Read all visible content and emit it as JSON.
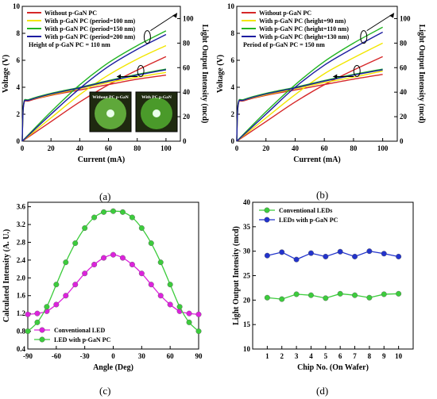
{
  "panels": [
    {
      "label": "(a)"
    },
    {
      "label": "(b)"
    },
    {
      "label": "(c)"
    },
    {
      "label": "(d)"
    }
  ],
  "chart_data": [
    {
      "id": "a",
      "type": "line",
      "xlabel": "Current (mA)",
      "ylabel": "Voltage (V)",
      "y2label": "Light Output Intensity (mcd)",
      "xlim": [
        0,
        110
      ],
      "ylim": [
        0,
        10
      ],
      "y2lim": [
        0,
        110
      ],
      "xticks": [
        0,
        20,
        40,
        60,
        80,
        100
      ],
      "yticks": [
        0,
        2,
        4,
        6,
        8,
        10
      ],
      "y2ticks": [
        0,
        20,
        40,
        60,
        80,
        100
      ],
      "annotation": "Height of p-GaN PC = 110 nm",
      "inset_labels": [
        "Without PC p-GaN",
        "With PC p-GaN"
      ],
      "series": [
        {
          "name": "Without p-GaN PC",
          "color": "#d62728",
          "voltage": [
            [
              0,
              0
            ],
            [
              1,
              2.7
            ],
            [
              5,
              3.0
            ],
            [
              20,
              3.4
            ],
            [
              40,
              3.8
            ],
            [
              60,
              4.2
            ],
            [
              80,
              4.6
            ],
            [
              100,
              4.9
            ]
          ],
          "intensity": [
            [
              0,
              0
            ],
            [
              20,
              16
            ],
            [
              40,
              32
            ],
            [
              60,
              46
            ],
            [
              80,
              58
            ],
            [
              100,
              69
            ]
          ]
        },
        {
          "name": "With p-GaN PC (period=100 nm)",
          "color": "#f2e600",
          "voltage": [
            [
              0,
              0
            ],
            [
              1,
              2.75
            ],
            [
              5,
              3.05
            ],
            [
              20,
              3.45
            ],
            [
              40,
              3.9
            ],
            [
              60,
              4.35
            ],
            [
              80,
              4.75
            ],
            [
              100,
              5.1
            ]
          ],
          "intensity": [
            [
              0,
              0
            ],
            [
              20,
              19
            ],
            [
              40,
              38
            ],
            [
              60,
              54
            ],
            [
              80,
              67
            ],
            [
              100,
              78
            ]
          ]
        },
        {
          "name": "With p-GaN PC (period=150 nm)",
          "color": "#22b422",
          "voltage": [
            [
              0,
              0
            ],
            [
              1,
              2.8
            ],
            [
              5,
              3.1
            ],
            [
              20,
              3.55
            ],
            [
              40,
              4.0
            ],
            [
              60,
              4.5
            ],
            [
              80,
              4.95
            ],
            [
              100,
              5.35
            ]
          ],
          "intensity": [
            [
              0,
              0
            ],
            [
              20,
              24
            ],
            [
              40,
              46
            ],
            [
              60,
              64
            ],
            [
              80,
              78
            ],
            [
              100,
              90
            ]
          ]
        },
        {
          "name": "With p-GaN PC (period=200 nm)",
          "color": "#1c1ca0",
          "voltage": [
            [
              0,
              0
            ],
            [
              1,
              2.75
            ],
            [
              5,
              3.05
            ],
            [
              20,
              3.5
            ],
            [
              40,
              3.95
            ],
            [
              60,
              4.45
            ],
            [
              80,
              4.9
            ],
            [
              100,
              5.3
            ]
          ],
          "intensity": [
            [
              0,
              0
            ],
            [
              20,
              22
            ],
            [
              40,
              43
            ],
            [
              60,
              61
            ],
            [
              80,
              75
            ],
            [
              100,
              87
            ]
          ]
        }
      ]
    },
    {
      "id": "b",
      "type": "line",
      "xlabel": "Current (mA)",
      "ylabel": "Voltage (V)",
      "y2label": "Light Output Intensity (mcd)",
      "xlim": [
        0,
        110
      ],
      "ylim": [
        0,
        10
      ],
      "y2lim": [
        0,
        110
      ],
      "xticks": [
        0,
        20,
        40,
        60,
        80,
        100
      ],
      "yticks": [
        0,
        2,
        4,
        6,
        8,
        10
      ],
      "y2ticks": [
        0,
        20,
        40,
        60,
        80,
        100
      ],
      "annotation": "Period of p-GaN PC = 150 nm",
      "series": [
        {
          "name": "Without p-GaN PC",
          "color": "#d62728",
          "voltage": [
            [
              0,
              0
            ],
            [
              1,
              2.7
            ],
            [
              5,
              3.0
            ],
            [
              20,
              3.4
            ],
            [
              40,
              3.8
            ],
            [
              60,
              4.2
            ],
            [
              80,
              4.6
            ],
            [
              100,
              4.95
            ]
          ],
          "intensity": [
            [
              0,
              0
            ],
            [
              20,
              16
            ],
            [
              40,
              32
            ],
            [
              60,
              46
            ],
            [
              80,
              58
            ],
            [
              100,
              69
            ]
          ]
        },
        {
          "name": "With p-GaN PC (height=90 nm)",
          "color": "#f2e600",
          "voltage": [
            [
              0,
              0
            ],
            [
              1,
              2.75
            ],
            [
              5,
              3.05
            ],
            [
              20,
              3.45
            ],
            [
              40,
              3.9
            ],
            [
              60,
              4.35
            ],
            [
              80,
              4.75
            ],
            [
              100,
              5.2
            ]
          ],
          "intensity": [
            [
              0,
              0
            ],
            [
              20,
              19
            ],
            [
              40,
              38
            ],
            [
              60,
              55
            ],
            [
              80,
              68
            ],
            [
              100,
              80
            ]
          ]
        },
        {
          "name": "With p-GaN PC (height=110 nm)",
          "color": "#22b422",
          "voltage": [
            [
              0,
              0
            ],
            [
              1,
              2.8
            ],
            [
              5,
              3.1
            ],
            [
              20,
              3.55
            ],
            [
              40,
              4.0
            ],
            [
              60,
              4.5
            ],
            [
              80,
              4.95
            ],
            [
              100,
              5.35
            ]
          ],
          "intensity": [
            [
              0,
              0
            ],
            [
              20,
              24
            ],
            [
              40,
              46
            ],
            [
              60,
              65
            ],
            [
              80,
              80
            ],
            [
              100,
              93
            ]
          ]
        },
        {
          "name": "With p-GaN PC (height=130 nm)",
          "color": "#1c1ca0",
          "voltage": [
            [
              0,
              0
            ],
            [
              1,
              2.75
            ],
            [
              5,
              3.05
            ],
            [
              20,
              3.5
            ],
            [
              40,
              3.95
            ],
            [
              60,
              4.45
            ],
            [
              80,
              4.9
            ],
            [
              100,
              5.3
            ]
          ],
          "intensity": [
            [
              0,
              0
            ],
            [
              20,
              22
            ],
            [
              40,
              44
            ],
            [
              60,
              62
            ],
            [
              80,
              76
            ],
            [
              100,
              89
            ]
          ]
        }
      ]
    },
    {
      "id": "c",
      "type": "line",
      "xlabel": "Angle (Deg)",
      "ylabel": "Calculated Intensity (A. U.)",
      "xlim": [
        -90,
        90
      ],
      "ylim": [
        0.4,
        3.7
      ],
      "xticks": [
        -90,
        -60,
        -30,
        0,
        30,
        60,
        90
      ],
      "yticks": [
        0.4,
        0.8,
        1.2,
        1.6,
        2.0,
        2.4,
        2.8,
        3.2,
        3.6
      ],
      "x": [
        -90,
        -80,
        -70,
        -60,
        -50,
        -40,
        -30,
        -20,
        -10,
        0,
        10,
        20,
        30,
        40,
        50,
        60,
        70,
        80,
        90
      ],
      "series": [
        {
          "name": "Conventional LED",
          "color": "#dd22dd",
          "values": [
            1.18,
            1.2,
            1.25,
            1.4,
            1.6,
            1.85,
            2.1,
            2.3,
            2.45,
            2.52,
            2.45,
            2.3,
            2.1,
            1.85,
            1.6,
            1.4,
            1.25,
            1.2,
            1.18
          ]
        },
        {
          "name": "LED with p-GaN PC",
          "color": "#3ccc3c",
          "values": [
            0.8,
            1.0,
            1.35,
            1.85,
            2.35,
            2.78,
            3.12,
            3.36,
            3.48,
            3.5,
            3.48,
            3.36,
            3.12,
            2.78,
            2.35,
            1.85,
            1.35,
            1.0,
            0.8
          ]
        }
      ]
    },
    {
      "id": "d",
      "type": "line",
      "xlabel": "Chip No. (On Wafer)",
      "ylabel": "Light Output Intensity (mcd)",
      "xlim": [
        0,
        11
      ],
      "ylim": [
        10,
        40
      ],
      "xticks": [
        1,
        2,
        3,
        4,
        5,
        6,
        7,
        8,
        9,
        10
      ],
      "yticks": [
        10,
        15,
        20,
        25,
        30,
        35,
        40
      ],
      "x": [
        1,
        2,
        3,
        4,
        5,
        6,
        7,
        8,
        9,
        10
      ],
      "series": [
        {
          "name": "Conventional LEDs",
          "color": "#3ccc3c",
          "values": [
            20.5,
            20.2,
            21.2,
            21.0,
            20.4,
            21.3,
            21.0,
            20.5,
            21.2,
            21.3
          ]
        },
        {
          "name": "LEDs with p-GaN PC",
          "color": "#2233cc",
          "values": [
            29.1,
            29.8,
            28.3,
            29.6,
            28.9,
            29.9,
            28.9,
            30.0,
            29.5,
            28.9
          ]
        }
      ]
    }
  ]
}
